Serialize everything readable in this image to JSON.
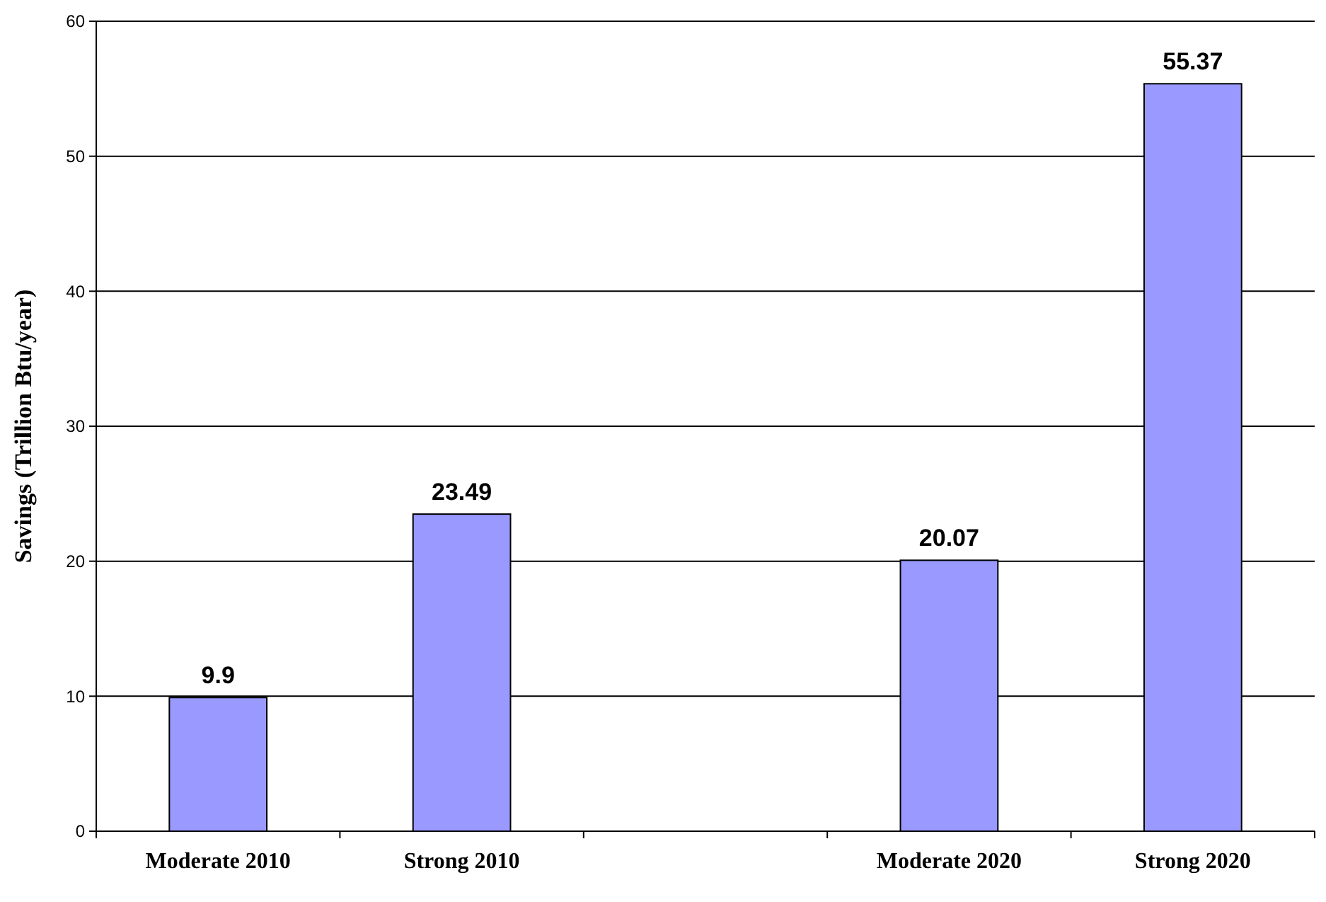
{
  "chart_data": {
    "type": "bar",
    "ylabel": "Savings (Trillion Btu/year)",
    "categories": [
      "Moderate 2010",
      "Strong 2010",
      null,
      "Moderate 2020",
      "Strong 2020"
    ],
    "values": [
      9.9,
      23.49,
      null,
      20.07,
      55.37
    ],
    "color": "#9999ff",
    "ylim": [
      0,
      60
    ],
    "yticks": [
      0,
      10,
      20,
      30,
      40,
      50,
      60
    ],
    "grid": "y",
    "data_labels": true
  }
}
